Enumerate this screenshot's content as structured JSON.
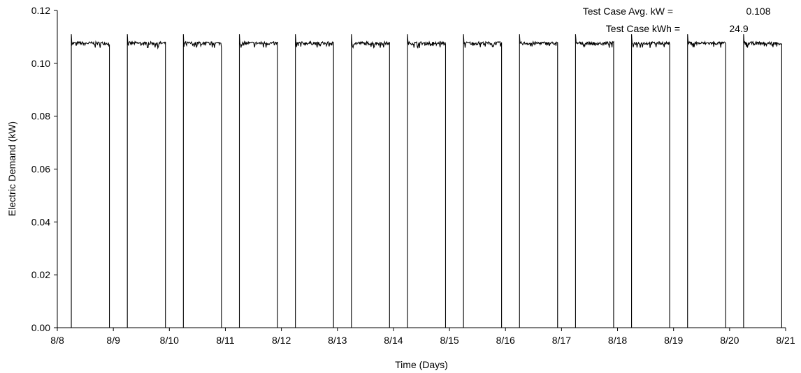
{
  "chart_data": {
    "type": "line",
    "title": "",
    "xlabel": "Time (Days)",
    "ylabel": "Electric Demand (kW)",
    "x_tick_labels": [
      "8/8",
      "8/9",
      "8/10",
      "8/11",
      "8/12",
      "8/13",
      "8/14",
      "8/15",
      "8/16",
      "8/17",
      "8/18",
      "8/19",
      "8/20",
      "8/21"
    ],
    "xlim": [
      0,
      13
    ],
    "ylim": [
      0,
      0.12
    ],
    "y_ticks": [
      0,
      0.02,
      0.04,
      0.06,
      0.08,
      0.1,
      0.12
    ],
    "y_tick_labels": [
      "0.00",
      "0.02",
      "0.04",
      "0.06",
      "0.08",
      "0.10",
      "0.12"
    ],
    "grid": false,
    "series_color": "#000000",
    "annotations": [
      {
        "label": "Test Case Avg. kW =",
        "value": "0.108"
      },
      {
        "label": "Test Case kWh =",
        "value": "24.9"
      }
    ],
    "on_off_cycles": [
      {
        "day": "8/8",
        "on": 0.25,
        "off": 0.93,
        "on_level_kW": 0.108
      },
      {
        "day": "8/9",
        "on": 1.25,
        "off": 1.93,
        "on_level_kW": 0.108
      },
      {
        "day": "8/10",
        "on": 2.25,
        "off": 2.93,
        "on_level_kW": 0.108
      },
      {
        "day": "8/11",
        "on": 3.25,
        "off": 3.93,
        "on_level_kW": 0.108
      },
      {
        "day": "8/12",
        "on": 4.25,
        "off": 4.93,
        "on_level_kW": 0.108
      },
      {
        "day": "8/13",
        "on": 5.25,
        "off": 5.93,
        "on_level_kW": 0.108
      },
      {
        "day": "8/14",
        "on": 6.25,
        "off": 6.93,
        "on_level_kW": 0.108
      },
      {
        "day": "8/15",
        "on": 7.25,
        "off": 7.93,
        "on_level_kW": 0.108
      },
      {
        "day": "8/16",
        "on": 8.25,
        "off": 8.93,
        "on_level_kW": 0.108
      },
      {
        "day": "8/17",
        "on": 9.25,
        "off": 9.93,
        "on_level_kW": 0.108
      },
      {
        "day": "8/18",
        "on": 10.25,
        "off": 10.93,
        "on_level_kW": 0.108
      },
      {
        "day": "8/19",
        "on": 11.25,
        "off": 11.93,
        "on_level_kW": 0.108
      },
      {
        "day": "8/20",
        "on": 12.25,
        "off": 12.93,
        "on_level_kW": 0.108
      }
    ],
    "off_level_kW": 0.0
  }
}
